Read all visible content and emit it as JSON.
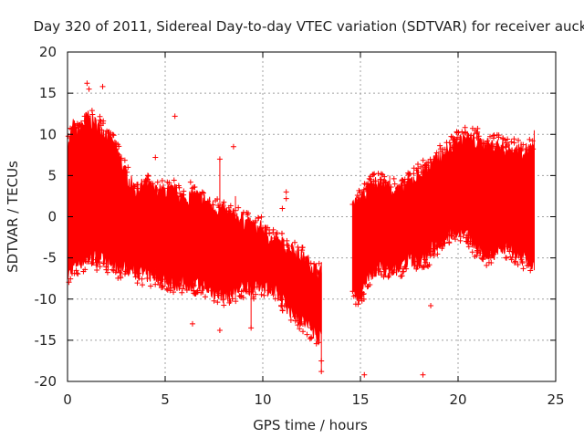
{
  "chart_data": {
    "type": "scatter",
    "title": "Day 320 of 2011, Sidereal Day-to-day VTEC variation (SDTVAR) for receiver auck",
    "xlabel": "GPS time / hours",
    "ylabel": "SDTVAR / TECUs",
    "xlim": [
      0,
      25
    ],
    "ylim": [
      -20,
      20
    ],
    "x_ticks": [
      0,
      5,
      10,
      15,
      20,
      25
    ],
    "y_ticks": [
      -20,
      -15,
      -10,
      -5,
      0,
      5,
      10,
      15,
      20
    ],
    "x_tick_labels": [
      "0",
      "5",
      "10",
      "15",
      "20",
      "25"
    ],
    "y_tick_labels": [
      "-20",
      "-15",
      "-10",
      "-5",
      "0",
      "5",
      "10",
      "15",
      "20"
    ],
    "grid": true,
    "marker": "+",
    "color": "#ff0000",
    "series": [
      {
        "name": "SDTVAR",
        "envelope": {
          "x": [
            0.0,
            0.3,
            0.5,
            1.0,
            1.5,
            2.0,
            2.5,
            3.0,
            3.5,
            4.0,
            4.5,
            5.0,
            5.5,
            6.0,
            6.5,
            7.0,
            7.5,
            8.0,
            8.5,
            9.0,
            9.5,
            10.0,
            10.5,
            11.0,
            11.5,
            12.0,
            12.5,
            12.9,
            13.0
          ],
          "upper": [
            8.0,
            11.0,
            10.0,
            12.0,
            11.0,
            10.0,
            8.0,
            5.0,
            3.0,
            4.0,
            3.0,
            3.0,
            3.0,
            2.0,
            2.5,
            2.0,
            1.0,
            0.5,
            0.0,
            -0.5,
            -1.5,
            -1.5,
            -3.0,
            -3.5,
            -4.0,
            -5.0,
            -6.0,
            -7.0,
            -7.0
          ],
          "lower": [
            -7.0,
            -6.0,
            -5.5,
            -5.0,
            -5.0,
            -5.5,
            -6.0,
            -6.0,
            -6.5,
            -7.0,
            -7.0,
            -7.5,
            -8.0,
            -8.0,
            -8.0,
            -8.5,
            -9.0,
            -9.5,
            -9.0,
            -8.5,
            -8.5,
            -8.0,
            -9.0,
            -10.0,
            -11.5,
            -12.5,
            -13.5,
            -14.5,
            -14.5
          ]
        },
        "envelope2": {
          "x": [
            14.6,
            15.0,
            15.5,
            16.0,
            16.5,
            17.0,
            17.5,
            18.0,
            18.5,
            19.0,
            19.5,
            20.0,
            20.5,
            21.0,
            21.5,
            22.0,
            22.5,
            23.0,
            23.5,
            23.9
          ],
          "upper": [
            1.0,
            2.0,
            3.5,
            4.0,
            3.5,
            3.0,
            4.0,
            5.0,
            6.0,
            7.0,
            8.0,
            9.0,
            9.5,
            9.0,
            8.5,
            8.5,
            8.0,
            8.0,
            8.0,
            8.0
          ],
          "lower": [
            -9.0,
            -9.5,
            -7.0,
            -6.0,
            -6.5,
            -6.0,
            -5.0,
            -5.5,
            -4.5,
            -3.0,
            -2.0,
            -1.5,
            -2.0,
            -4.0,
            -4.5,
            -4.0,
            -3.5,
            -4.5,
            -5.0,
            -6.0
          ]
        },
        "outliers": [
          [
            1.0,
            16.2
          ],
          [
            1.1,
            15.5
          ],
          [
            1.8,
            15.8
          ],
          [
            5.5,
            12.2
          ],
          [
            4.5,
            7.2
          ],
          [
            8.5,
            8.5
          ],
          [
            6.3,
            4.2
          ],
          [
            6.4,
            -13.0
          ],
          [
            7.8,
            -13.8
          ],
          [
            7.8,
            7.0
          ],
          [
            11.2,
            3.0
          ],
          [
            11.2,
            2.2
          ],
          [
            11.0,
            1.0
          ],
          [
            15.2,
            -19.2
          ],
          [
            14.6,
            1.5
          ],
          [
            18.2,
            -19.2
          ],
          [
            18.6,
            -10.8
          ],
          [
            20.2,
            10.3
          ],
          [
            21.0,
            10.7
          ],
          [
            21.5,
            9.2
          ],
          [
            21.5,
            8.5
          ],
          [
            9.4,
            -13.5
          ],
          [
            13.0,
            -17.5
          ],
          [
            13.0,
            -18.8
          ]
        ]
      }
    ]
  }
}
